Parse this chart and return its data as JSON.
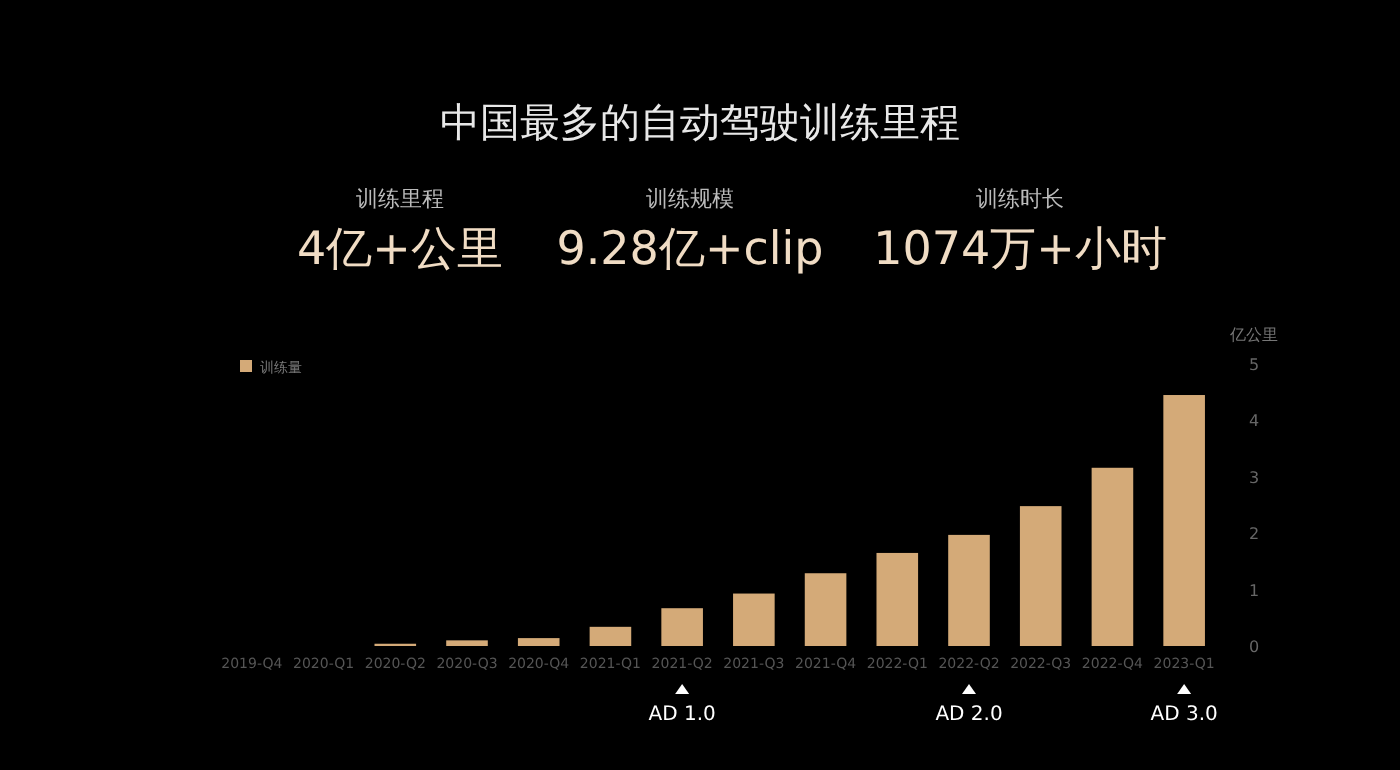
{
  "chart_data": {
    "type": "bar",
    "title": "中国最多的自动驾驶训练里程",
    "categories": [
      "2019-Q4",
      "2020-Q1",
      "2020-Q2",
      "2020-Q3",
      "2020-Q4",
      "2021-Q1",
      "2021-Q2",
      "2021-Q3",
      "2021-Q4",
      "2022-Q1",
      "2022-Q2",
      "2022-Q3",
      "2022-Q4",
      "2023-Q1"
    ],
    "series": [
      {
        "name": "训练量",
        "color": "#d4aa78",
        "values": [
          0,
          0,
          0.04,
          0.1,
          0.14,
          0.34,
          0.67,
          0.93,
          1.29,
          1.65,
          1.97,
          2.48,
          3.16,
          4.45
        ]
      }
    ],
    "ylabel": "亿公里",
    "ylim": [
      0,
      5
    ],
    "yticks": [
      0,
      1,
      2,
      3,
      4,
      5
    ],
    "legend": "top left",
    "grid": false,
    "annotations": [
      "训练里程",
      "4亿+公里",
      "训练规模",
      "9.28亿+clip",
      "训练时长",
      "1074万+小时",
      "AD 1.0",
      "AD 2.0",
      "AD 3.0"
    ]
  }
}
